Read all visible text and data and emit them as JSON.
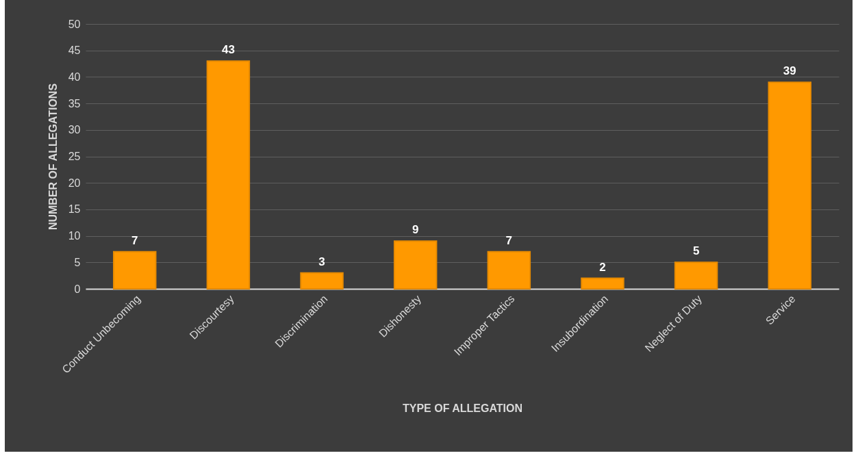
{
  "chart_data": {
    "type": "bar",
    "xlabel": "TYPE OF ALLEGATION",
    "ylabel": "NUMBER OF ALLEGATIONS",
    "categories": [
      "Conduct Unbecoming",
      "Discourtesy",
      "Discrimination",
      "Dishonesty",
      "Improper Tactics",
      "Insubordination",
      "Neglect of Duty",
      "Service"
    ],
    "values": [
      7,
      43,
      3,
      9,
      7,
      2,
      5,
      39
    ],
    "color": "#ff9900",
    "ylim": [
      0,
      50
    ],
    "yticks": [
      0,
      5,
      10,
      15,
      20,
      25,
      30,
      35,
      40,
      45,
      50
    ],
    "grid": "y",
    "data_labels": true
  }
}
